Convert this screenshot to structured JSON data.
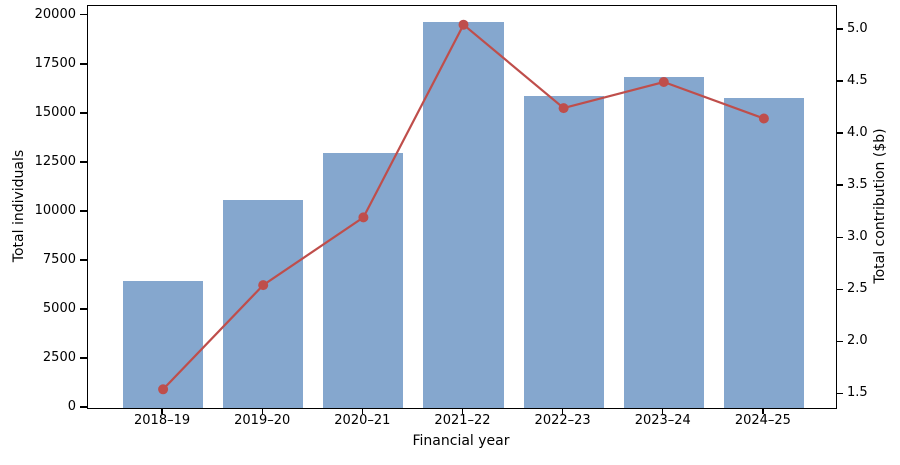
{
  "chart_data": {
    "type": "bar",
    "title": "",
    "categories": [
      "2018–19",
      "2019–20",
      "2020–21",
      "2021–22",
      "2022–23",
      "2023–24",
      "2024–25"
    ],
    "series": [
      {
        "name": "Total individuals",
        "render": "bar",
        "axis": "left",
        "values": [
          6500,
          10600,
          13000,
          19700,
          15900,
          16900,
          15800
        ],
        "color": "#85a7ce"
      },
      {
        "name": "Total contribution ($b)",
        "render": "line",
        "axis": "right",
        "values": [
          1.55,
          2.55,
          3.2,
          5.05,
          4.25,
          4.5,
          4.15
        ],
        "color": "#bf4e4b"
      }
    ],
    "xlabel": "Financial year",
    "ylabel_left": "Total individuals",
    "ylabel_right": "Total contribution ($b)",
    "yticks_left": [
      0,
      2500,
      5000,
      7500,
      10000,
      12500,
      15000,
      17500,
      20000
    ],
    "yticks_right": [
      1.5,
      2.0,
      2.5,
      3.0,
      3.5,
      4.0,
      4.5,
      5.0
    ],
    "ylim_left": [
      0,
      20500
    ],
    "ylim_right": [
      1.37,
      5.23
    ],
    "xlim": [
      -0.75,
      6.72
    ],
    "bar_width_units": 0.8,
    "grid": false,
    "legend": "none",
    "axis_color": "#000000"
  }
}
